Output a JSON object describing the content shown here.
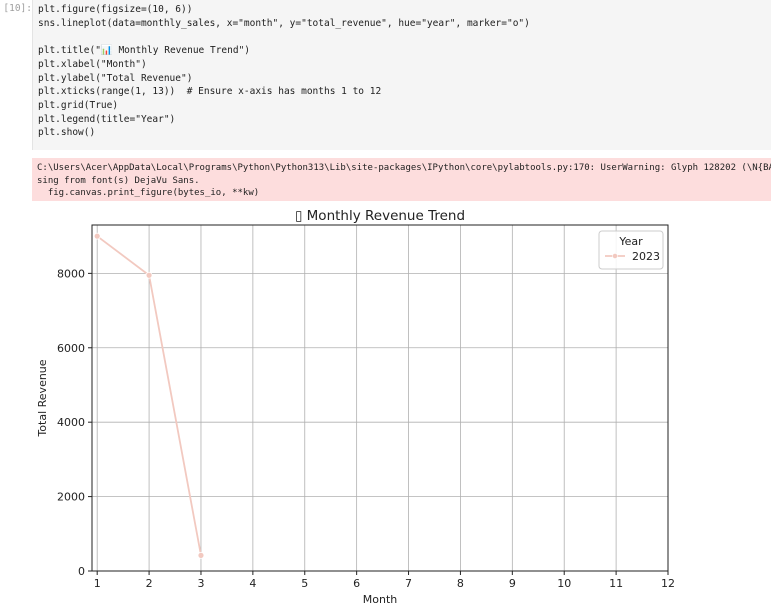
{
  "cell": {
    "prompt": "[10]:",
    "code_lines": [
      "plt.figure(figsize=(10, 6))",
      "sns.lineplot(data=monthly_sales, x=\"month\", y=\"total_revenue\", hue=\"year\", marker=\"o\")",
      "",
      "plt.title(\"📊 Monthly Revenue Trend\")",
      "plt.xlabel(\"Month\")",
      "plt.ylabel(\"Total Revenue\")",
      "plt.xticks(range(1, 13))  # Ensure x-axis has months 1 to 12",
      "plt.grid(True)",
      "plt.legend(title=\"Year\")",
      "plt.show()"
    ]
  },
  "warning": {
    "line1": "C:\\Users\\Acer\\AppData\\Local\\Programs\\Python\\Python313\\Lib\\site-packages\\IPython\\core\\pylabtools.py:170: UserWarning: Glyph 128202 (\\N{BAR",
    "line2": "sing from font(s) DejaVu Sans.",
    "line3": "  fig.canvas.print_figure(bytes_io, **kw)"
  },
  "chart_data": {
    "type": "line",
    "title": "▯ Monthly Revenue Trend",
    "xlabel": "Month",
    "ylabel": "Total Revenue",
    "xlim": [
      0.9,
      12
    ],
    "ylim": [
      0,
      9300
    ],
    "xticks": [
      1,
      2,
      3,
      4,
      5,
      6,
      7,
      8,
      9,
      10,
      11,
      12
    ],
    "yticks": [
      0,
      2000,
      4000,
      6000,
      8000
    ],
    "grid": true,
    "legend": {
      "title": "Year",
      "placement": "top-right"
    },
    "series": [
      {
        "name": "2023",
        "color": "#f2c9c0",
        "x": [
          1,
          2,
          3
        ],
        "y": [
          9000,
          7950,
          420
        ]
      }
    ]
  }
}
